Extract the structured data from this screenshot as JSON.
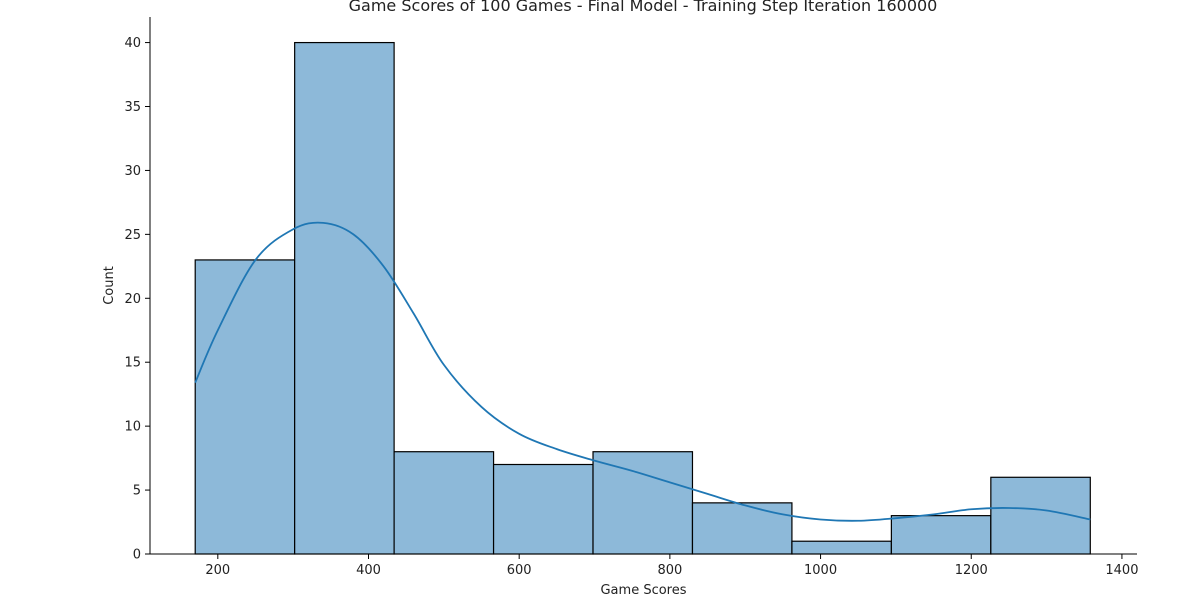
{
  "chart_data": {
    "type": "histogram",
    "title": "Game Scores of 100 Games - Final Model - Training Step Iteration 160000",
    "xlabel": "Game Scores",
    "ylabel": "Count",
    "xlim": [
      110,
      1420
    ],
    "ylim": [
      0,
      42
    ],
    "xticks": [
      200,
      400,
      600,
      800,
      1000,
      1200,
      1400
    ],
    "yticks": [
      0,
      5,
      10,
      15,
      20,
      25,
      30,
      35,
      40
    ],
    "bins": [
      {
        "start": 170,
        "end": 302,
        "count": 23
      },
      {
        "start": 302,
        "end": 434,
        "count": 40
      },
      {
        "start": 434,
        "end": 566,
        "count": 8
      },
      {
        "start": 566,
        "end": 698,
        "count": 7
      },
      {
        "start": 698,
        "end": 830,
        "count": 8
      },
      {
        "start": 830,
        "end": 962,
        "count": 4
      },
      {
        "start": 962,
        "end": 1094,
        "count": 1
      },
      {
        "start": 1094,
        "end": 1226,
        "count": 3
      },
      {
        "start": 1226,
        "end": 1358,
        "count": 6
      }
    ],
    "kde": {
      "x": [
        170,
        200,
        250,
        300,
        340,
        380,
        420,
        460,
        500,
        550,
        600,
        650,
        700,
        750,
        800,
        850,
        900,
        950,
        1000,
        1050,
        1100,
        1150,
        1200,
        1250,
        1300,
        1358
      ],
      "y": [
        13.4,
        17.5,
        23.0,
        25.4,
        25.9,
        25.0,
        22.5,
        18.8,
        14.8,
        11.5,
        9.4,
        8.2,
        7.3,
        6.5,
        5.6,
        4.7,
        3.8,
        3.1,
        2.7,
        2.6,
        2.8,
        3.1,
        3.5,
        3.6,
        3.4,
        2.7
      ]
    },
    "grid": false,
    "colors": {
      "bar_fill": "#8db9d9",
      "bar_edge": "#000000",
      "kde_line": "#1f77b4"
    }
  }
}
